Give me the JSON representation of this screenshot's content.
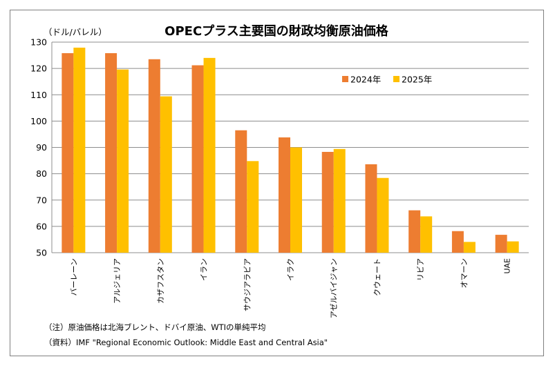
{
  "chart_data": {
    "type": "bar",
    "title": "OPECプラス主要国の財政均衡原油価格",
    "ylabel": "（ドル/バレル）",
    "xlabel": "",
    "ylim": [
      50,
      130
    ],
    "yticks": [
      50,
      60,
      70,
      80,
      90,
      100,
      110,
      120,
      130
    ],
    "grid": true,
    "legend_position": "top-right",
    "categories": [
      "バーレーン",
      "アルジェリア",
      "カザフスタン",
      "イラン",
      "サウジアラビア",
      "イラク",
      "アゼルバイジャン",
      "クウェート",
      "リビア",
      "オマーン",
      "UAE"
    ],
    "series": [
      {
        "name": "2024年",
        "color": "#ED7D31",
        "values": [
          125.8,
          125.8,
          123.5,
          121.2,
          96.5,
          93.8,
          88.3,
          83.6,
          66.1,
          58.2,
          56.8
        ]
      },
      {
        "name": "2025年",
        "color": "#FFC000",
        "values": [
          127.9,
          119.6,
          109.4,
          124.0,
          84.8,
          90.0,
          89.4,
          78.4,
          63.8,
          54.1,
          54.3
        ]
      }
    ]
  },
  "notes": {
    "note": "（注）原油価格は北海ブレント、ドバイ原油、WTIの単純平均",
    "source": "（資料）IMF \"Regional Economic Outlook: Middle East and Central Asia\""
  }
}
